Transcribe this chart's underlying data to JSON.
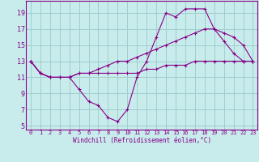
{
  "xlabel": "Windchill (Refroidissement éolien,°C)",
  "background_color": "#c8ecec",
  "grid_color": "#a0cece",
  "line_color": "#880088",
  "x_hours": [
    0,
    1,
    2,
    3,
    4,
    5,
    6,
    7,
    8,
    9,
    10,
    11,
    12,
    13,
    14,
    15,
    16,
    17,
    18,
    19,
    20,
    21,
    22,
    23
  ],
  "windchill": [
    13,
    11.5,
    11,
    11,
    11,
    9.5,
    8,
    7.5,
    6,
    5.5,
    7,
    11,
    13,
    16,
    19,
    18.5,
    19.5,
    19.5,
    19.5,
    17,
    15.5,
    14,
    13,
    13
  ],
  "temp_max": [
    13,
    11.5,
    11,
    11,
    11,
    11.5,
    11.5,
    12,
    12.5,
    13,
    13,
    13.5,
    14,
    14.5,
    15,
    15.5,
    16,
    16.5,
    17,
    17,
    16.5,
    16,
    15,
    13
  ],
  "temp_min": [
    13,
    11.5,
    11,
    11,
    11,
    11.5,
    11.5,
    11.5,
    11.5,
    11.5,
    11.5,
    11.5,
    12,
    12,
    12.5,
    12.5,
    12.5,
    13,
    13,
    13,
    13,
    13,
    13,
    13
  ],
  "ylim": [
    4.5,
    20.5
  ],
  "xlim": [
    -0.5,
    23.5
  ],
  "yticks": [
    5,
    7,
    9,
    11,
    13,
    15,
    17,
    19
  ],
  "xticks": [
    0,
    1,
    2,
    3,
    4,
    5,
    6,
    7,
    8,
    9,
    10,
    11,
    12,
    13,
    14,
    15,
    16,
    17,
    18,
    19,
    20,
    21,
    22,
    23
  ]
}
